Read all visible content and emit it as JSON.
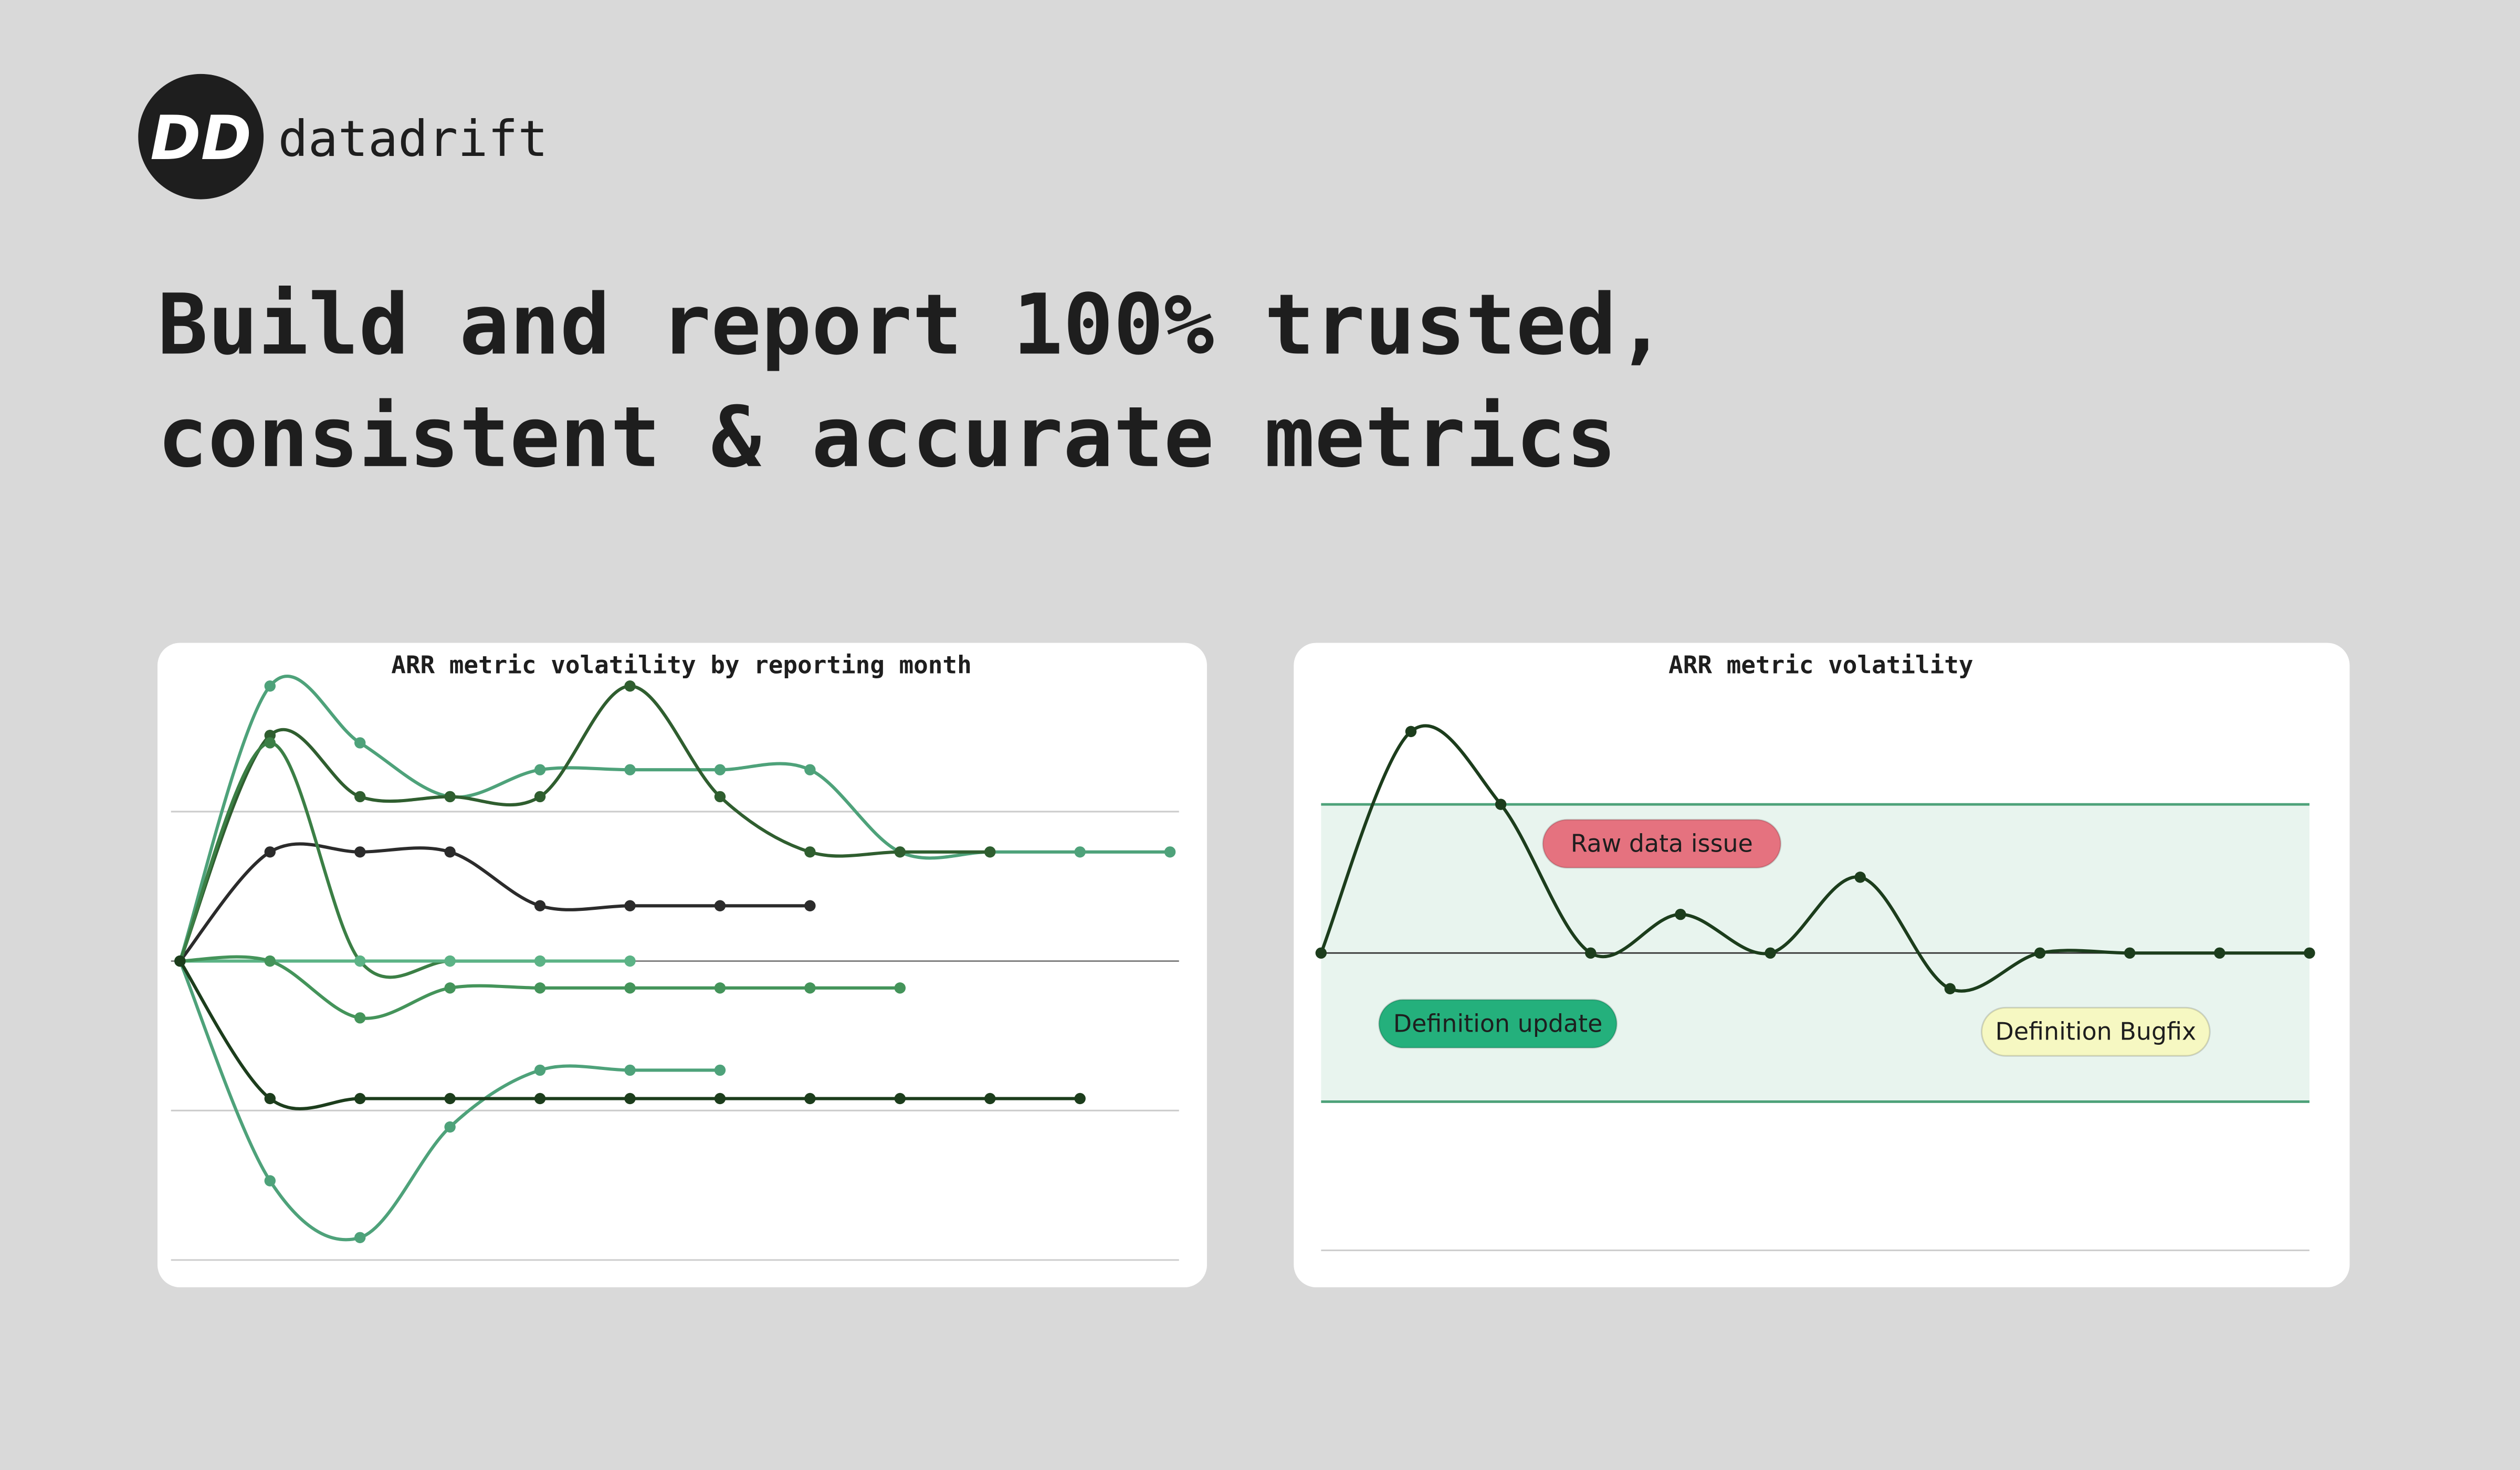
{
  "brand": {
    "logo": "DD",
    "name": "datadrift"
  },
  "headline": [
    "Build and report 100% trusted,",
    "consistent & accurate metrics"
  ],
  "chart_data": [
    {
      "type": "line",
      "title": "ARR metric volatility by reporting month",
      "x": [
        0,
        1,
        2,
        3,
        4,
        5,
        6,
        7,
        8,
        9,
        10,
        11
      ],
      "xlim": [
        -0.1,
        11.1
      ],
      "ylim": [
        -20,
        21
      ],
      "yticks": [
        -20,
        -10,
        0,
        10
      ],
      "grid": true,
      "series": [
        {
          "color": "#4ea27a",
          "values": [
            0,
            18.4,
            14.6,
            11.0,
            12.8,
            12.8,
            12.8,
            12.8,
            7.3,
            7.3,
            7.3,
            7.3
          ]
        },
        {
          "color": "#2f5e2f",
          "values": [
            0,
            15.1,
            11.0,
            11.0,
            11.0,
            18.4,
            11.0,
            7.3,
            7.3,
            7.3,
            null,
            null
          ]
        },
        {
          "color": "#2b2b2b",
          "values": [
            0,
            7.3,
            7.3,
            7.3,
            3.7,
            3.7,
            3.7,
            3.7,
            null,
            null,
            null,
            null
          ]
        },
        {
          "color": "#3b7f45",
          "values": [
            0,
            14.6,
            0,
            0,
            0,
            null,
            null,
            null,
            null,
            null,
            null,
            null
          ]
        },
        {
          "color": "#5cb386",
          "values": [
            0,
            0,
            0,
            0,
            0,
            0,
            null,
            null,
            null,
            null,
            null,
            null
          ]
        },
        {
          "color": "#44945a",
          "values": [
            0,
            0,
            -3.8,
            -1.8,
            -1.8,
            -1.8,
            -1.8,
            -1.8,
            -1.8,
            null,
            null,
            null
          ]
        },
        {
          "color": "#4ea27a",
          "values": [
            0,
            -14.7,
            -18.5,
            -11.1,
            -7.3,
            -7.3,
            -7.3,
            null,
            null,
            null,
            null,
            null
          ]
        },
        {
          "color": "#1c3d1c",
          "values": [
            0,
            -9.2,
            -9.2,
            -9.2,
            -9.2,
            -9.2,
            -9.2,
            -9.2,
            -9.2,
            -9.2,
            -9.2,
            null
          ]
        }
      ]
    },
    {
      "type": "line",
      "title": "ARR metric volatility",
      "x": [
        0,
        1,
        2,
        3,
        4,
        5,
        6,
        7,
        8,
        9,
        10,
        11
      ],
      "xlim": [
        0,
        11
      ],
      "ylim": [
        -20,
        21
      ],
      "yticks": [
        -20,
        0
      ],
      "grid": true,
      "band": [
        -10,
        10
      ],
      "band_color": "#e8f4ee",
      "band_line_color": "#4ea27a",
      "series": [
        {
          "color": "#1c3d1c",
          "values": [
            0,
            14.9,
            10,
            0,
            2.6,
            0,
            5.1,
            -2.4,
            0,
            0,
            0,
            0
          ]
        }
      ],
      "annotations": [
        {
          "text": "Raw data issue",
          "color": "#e5727f"
        },
        {
          "text": "Definition update",
          "color": "#24b07c"
        },
        {
          "text": "Definition Bugfix",
          "color": "#f6f8c2"
        }
      ]
    }
  ]
}
